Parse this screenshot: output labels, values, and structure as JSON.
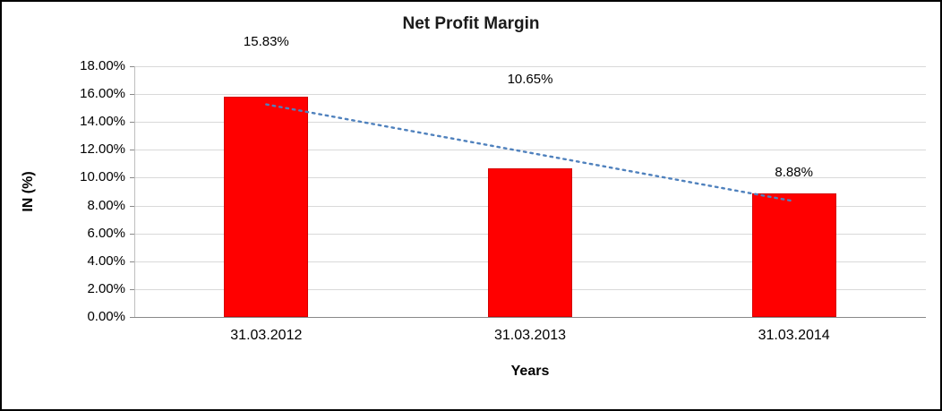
{
  "chart_data": {
    "type": "bar",
    "title": "Net Profit Margin",
    "xlabel": "Years",
    "ylabel": "IN (%)",
    "categories": [
      "31.03.2012",
      "31.03.2013",
      "31.03.2014"
    ],
    "values": [
      15.83,
      10.65,
      8.88
    ],
    "data_labels": [
      "15.83%",
      "10.65%",
      "8.88%"
    ],
    "ylim": [
      0,
      18
    ],
    "ytick_step": 2,
    "ytick_labels": [
      "0.00%",
      "2.00%",
      "4.00%",
      "6.00%",
      "8.00%",
      "10.00%",
      "12.00%",
      "14.00%",
      "16.00%",
      "18.00%"
    ],
    "grid": true,
    "legend": "none",
    "bar_color": "#ff0000",
    "trendline": {
      "type": "linear",
      "style": "dotted",
      "color": "#4f81bd"
    }
  }
}
